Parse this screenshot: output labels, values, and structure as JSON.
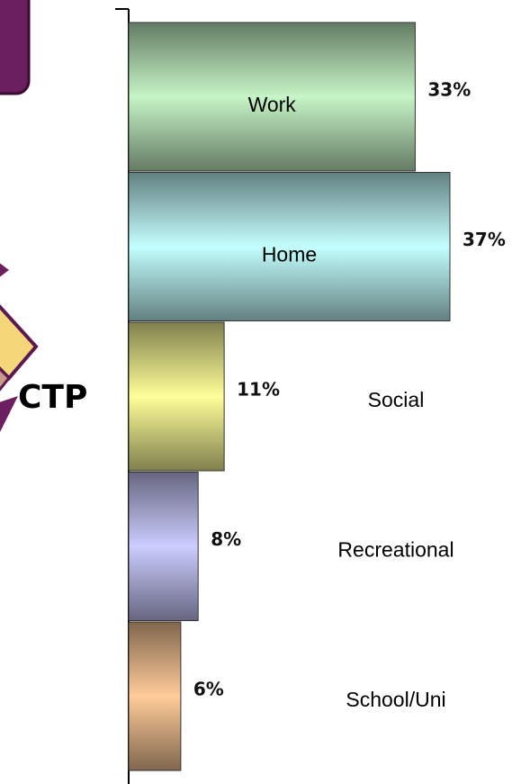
{
  "logo": {
    "text": "CTP"
  },
  "chart_data": {
    "type": "bar",
    "orientation": "horizontal",
    "categories": [
      "Work",
      "Home",
      "Social",
      "Recreational",
      "School/Uni"
    ],
    "values": [
      33,
      37,
      11,
      8,
      6
    ],
    "value_labels": [
      "33%",
      "37%",
      "11%",
      "8%",
      "6%"
    ],
    "colors": [
      "#c6f5c6",
      "#c4ffff",
      "#ffff99",
      "#ccccff",
      "#ffcc99"
    ]
  }
}
